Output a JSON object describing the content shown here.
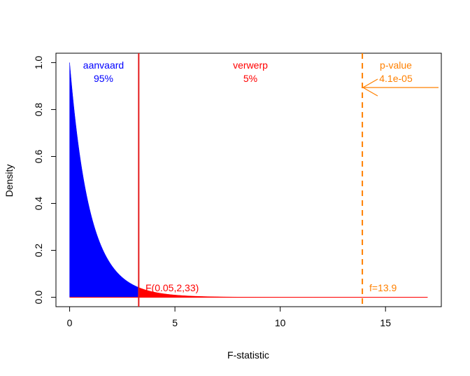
{
  "chart_data": {
    "type": "area",
    "xlabel": "F-statistic",
    "ylabel": "Density",
    "xlim": [
      -0.65,
      17.65
    ],
    "ylim": [
      -0.04,
      1.04
    ],
    "x_ticks": [
      0,
      5,
      10,
      15
    ],
    "x_tick_labels": [
      "0",
      "5",
      "10",
      "15"
    ],
    "y_ticks": [
      0.0,
      0.2,
      0.4,
      0.6,
      0.8,
      1.0
    ],
    "y_tick_labels": [
      "0.0",
      "0.2",
      "0.4",
      "0.6",
      "0.8",
      "1.0"
    ],
    "distribution": {
      "name": "F",
      "df1": 2,
      "df2": 33,
      "x_min": 0,
      "x_max": 17
    },
    "critical_value": 3.28,
    "observed_f": 13.9,
    "regions": [
      {
        "label": "aanvaard",
        "percent": "95%",
        "from": 0,
        "to": 3.28,
        "color": "#0000ff"
      },
      {
        "label": "verwerp",
        "percent": "5%",
        "from": 3.28,
        "to": 17,
        "color": "#ff0000"
      }
    ],
    "annotations": {
      "accept_label": "aanvaard",
      "accept_pct": "95%",
      "reject_label": "verwerp",
      "reject_pct": "5%",
      "critical_label": "F(0.05,2,33)",
      "pvalue_label": "p-value",
      "pvalue_value": "4.1e-05",
      "observed_label": "f=13.9"
    },
    "colors": {
      "accept": "#0000ff",
      "reject": "#ff0000",
      "critical_line": "#e41a1c",
      "observed": "#ff8000",
      "axis": "#000000"
    },
    "grid": false
  }
}
